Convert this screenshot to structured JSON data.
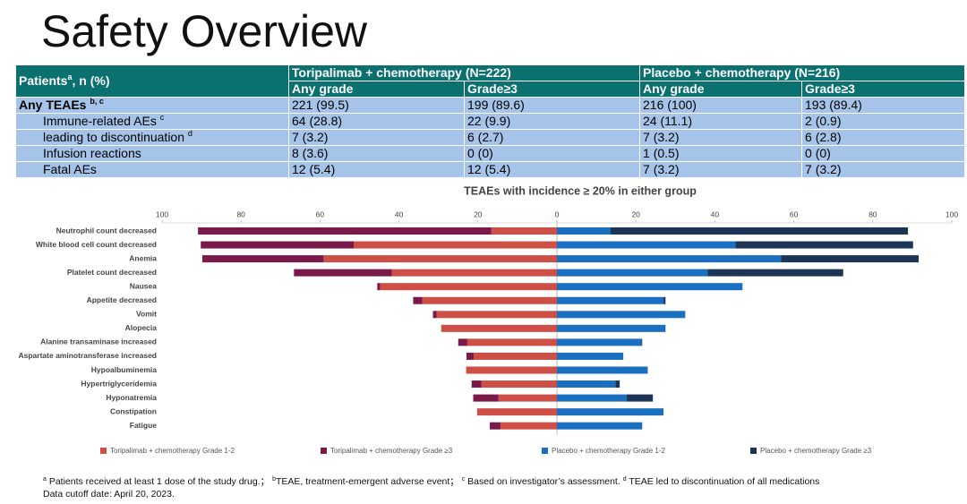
{
  "title": "Safety Overview",
  "table": {
    "header": {
      "group_label": {
        "text": "Patients",
        "sup": "a",
        "after": ", n (%)"
      },
      "groups": [
        "Toripalimab + chemotherapy (N=222)",
        "Placebo + chemotherapy (N=216)"
      ],
      "subheaders": [
        "Any grade",
        "Grade≥3",
        "Any grade",
        "Grade≥3"
      ]
    },
    "rows": [
      {
        "label": "Any TEAEs",
        "sup": "b, c",
        "cells": [
          "221 (99.5)",
          "199 (89.6)",
          "216 (100)",
          "193 (89.4)"
        ]
      },
      {
        "label": "Immune-related AEs",
        "sup": "c",
        "cells": [
          "64 (28.8)",
          "22 (9.9)",
          "24 (11.1)",
          "2 (0.9)"
        ]
      },
      {
        "label": "leading to discontinuation",
        "sup": "d",
        "cells": [
          "7 (3.2)",
          "6 (2.7)",
          "7 (3.2)",
          "6 (2.8)"
        ]
      },
      {
        "label": "Infusion reactions",
        "cells": [
          "8 (3.6)",
          "0 (0)",
          "1 (0.5)",
          "0 (0)"
        ]
      },
      {
        "label": "Fatal AEs",
        "cells": [
          "12 (5.4)",
          "12 (5.4)",
          "7 (3.2)",
          "7 (3.2)"
        ]
      }
    ]
  },
  "chart_data": {
    "type": "bar",
    "orientation": "horizontal",
    "title": "TEAEs with incidence ≥ 20% in either group",
    "categories": [
      "Neutrophil count decreased",
      "White blood cell count decreased",
      "Anemia",
      "Platelet count decreased",
      "Nausea",
      "Appetite decreased",
      "Vomit",
      "Alopecia",
      "Alanine transaminase increased",
      "Aspartate aminotransferase increased",
      "Hypoalbuminemia",
      "Hypertriglyceridemia",
      "Hyponatremia",
      "Constipation",
      "Fatigue"
    ],
    "series": [
      {
        "name": "Toripalimab + chemotherapy Grade 1-2",
        "color": "#cd4f45",
        "side": "left",
        "values": [
          16.6,
          51.4,
          59.1,
          41.8,
          44.8,
          34.1,
          30.5,
          29.3,
          22.7,
          21.1,
          23.0,
          19.1,
          14.8,
          20.2,
          14.3
        ]
      },
      {
        "name": "Toripalimab + chemotherapy Grade ≥3",
        "color": "#7a1a4b",
        "side": "left",
        "values": [
          74.3,
          38.8,
          30.7,
          24.8,
          0.7,
          2.3,
          0.9,
          0,
          2.3,
          1.8,
          0,
          2.5,
          6.4,
          0,
          2.7
        ]
      },
      {
        "name": "Placebo + chemotherapy Grade 1-2",
        "color": "#1a6fc0",
        "side": "right",
        "values": [
          13.6,
          45.2,
          56.8,
          38.2,
          47.0,
          27.0,
          32.5,
          27.5,
          21.4,
          16.8,
          23.0,
          14.8,
          17.7,
          27.0,
          21.6
        ]
      },
      {
        "name": "Placebo + chemotherapy Grade ≥3",
        "color": "#1c3556",
        "side": "right",
        "values": [
          75.3,
          45.0,
          34.8,
          34.3,
          0,
          0.5,
          0,
          0,
          0.2,
          0,
          0,
          1.1,
          6.6,
          0,
          0
        ]
      }
    ],
    "xlim": [
      -100,
      100
    ],
    "xticks": [
      {
        "value": -100,
        "label": "100"
      },
      {
        "value": -80,
        "label": "80"
      },
      {
        "value": -60,
        "label": "60"
      },
      {
        "value": -40,
        "label": "40"
      },
      {
        "value": -20,
        "label": "20"
      },
      0,
      20,
      40,
      60,
      80,
      100
    ],
    "legend": "bottom"
  },
  "footnotes": [
    {
      "mark": "a",
      "text": " Patients received at least 1 dose of the study drug.；"
    },
    {
      "mark": "b",
      "text": "TEAE, treatment-emergent adverse event；"
    },
    {
      "mark": "c",
      "text": " Based on investigator’s assessment."
    },
    {
      "mark": "d",
      "text": " TEAE led to discontinuation of all medications"
    }
  ],
  "cutoff": "Data cutoff date: April 20, 2023."
}
